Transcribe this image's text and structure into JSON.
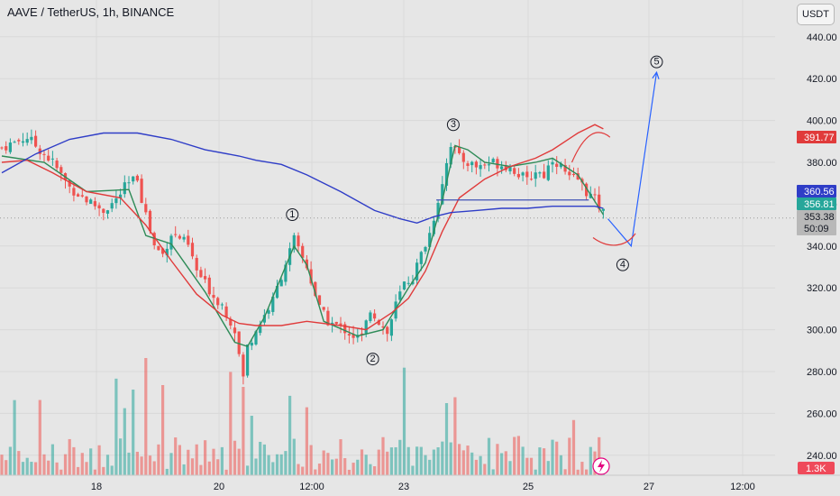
{
  "header": {
    "title": "AAVE / TetherUS, 1h, BINANCE",
    "currency": "USDT"
  },
  "colors": {
    "background": "#e6e6e6",
    "up": "#26a69a",
    "down": "#ef5350",
    "ma_blue": "#2f3dc7",
    "ma_red": "#e03b3b",
    "ma_green": "#2e8b57",
    "projection": "#2962ff",
    "grid": "#d9d9d9"
  },
  "chart_data": {
    "type": "candlestick",
    "symbol": "AAVE / TetherUS",
    "interval": "1h",
    "exchange": "BINANCE",
    "ylim": [
      230,
      447
    ],
    "y_ticks": [
      "440.00",
      "420.00",
      "400.00",
      "380.00",
      "360.00",
      "340.00",
      "320.00",
      "300.00",
      "280.00",
      "260.00",
      "240.00"
    ],
    "x_ticks": [
      "18",
      "20",
      "12:00",
      "23",
      "25",
      "27",
      "12:00"
    ],
    "price_path": [
      [
        0,
        387
      ],
      [
        6,
        392
      ],
      [
        10,
        384
      ],
      [
        12,
        380
      ],
      [
        16,
        368
      ],
      [
        20,
        362
      ],
      [
        24,
        357
      ],
      [
        27,
        362
      ],
      [
        29,
        368
      ],
      [
        32,
        373
      ],
      [
        33,
        363
      ],
      [
        36,
        340
      ],
      [
        38,
        336
      ],
      [
        40,
        346
      ],
      [
        42,
        344
      ],
      [
        44,
        340
      ],
      [
        46,
        328
      ],
      [
        48,
        322
      ],
      [
        50,
        316
      ],
      [
        52,
        312
      ],
      [
        55,
        300
      ],
      [
        56,
        288
      ],
      [
        57,
        277
      ],
      [
        58,
        292
      ],
      [
        60,
        300
      ],
      [
        64,
        314
      ],
      [
        67,
        332
      ],
      [
        69,
        343
      ],
      [
        70,
        338
      ],
      [
        72,
        330
      ],
      [
        75,
        310
      ],
      [
        77,
        304
      ],
      [
        79,
        302
      ],
      [
        81,
        300
      ],
      [
        83,
        297
      ],
      [
        85,
        296
      ],
      [
        87,
        310
      ],
      [
        89,
        304
      ],
      [
        91,
        298
      ],
      [
        93,
        312
      ],
      [
        95,
        322
      ],
      [
        97,
        325
      ],
      [
        99,
        336
      ],
      [
        101,
        346
      ],
      [
        103,
        362
      ],
      [
        105,
        380
      ],
      [
        106,
        389
      ],
      [
        108,
        382
      ],
      [
        112,
        378
      ],
      [
        116,
        380
      ],
      [
        120,
        378
      ],
      [
        124,
        371
      ],
      [
        126,
        376
      ],
      [
        128,
        374
      ],
      [
        130,
        382
      ],
      [
        132,
        378
      ],
      [
        134,
        372
      ],
      [
        136,
        372
      ],
      [
        138,
        366
      ],
      [
        140,
        362
      ],
      [
        142,
        356
      ],
      [
        143,
        353.4
      ]
    ],
    "series": [
      {
        "name": "",
        "values": [
          [
            0,
            383
          ],
          [
            10,
            380
          ],
          [
            20,
            366
          ],
          [
            30,
            367
          ],
          [
            34,
            345
          ],
          [
            40,
            341
          ],
          [
            48,
            318
          ],
          [
            55,
            294
          ],
          [
            58,
            292
          ],
          [
            62,
            306
          ],
          [
            69,
            340
          ],
          [
            72,
            331
          ],
          [
            76,
            304
          ],
          [
            84,
            297
          ],
          [
            90,
            300
          ],
          [
            96,
            320
          ],
          [
            100,
            332
          ],
          [
            104,
            362
          ],
          [
            107,
            388
          ],
          [
            110,
            386
          ],
          [
            114,
            380
          ],
          [
            120,
            378
          ],
          [
            126,
            380
          ],
          [
            130,
            382
          ],
          [
            136,
            374
          ],
          [
            142,
            355
          ]
        ]
      },
      {
        "name": "",
        "values": [
          [
            0,
            380
          ],
          [
            6,
            381
          ],
          [
            12,
            375
          ],
          [
            20,
            366
          ],
          [
            28,
            363
          ],
          [
            34,
            350
          ],
          [
            40,
            333
          ],
          [
            46,
            317
          ],
          [
            52,
            307
          ],
          [
            56,
            303
          ],
          [
            60,
            302
          ],
          [
            66,
            302
          ],
          [
            72,
            304
          ],
          [
            80,
            302
          ],
          [
            86,
            300
          ],
          [
            92,
            308
          ],
          [
            96,
            315
          ],
          [
            100,
            328
          ],
          [
            104,
            347
          ],
          [
            108,
            363
          ],
          [
            114,
            372
          ],
          [
            120,
            378
          ],
          [
            126,
            382
          ],
          [
            130,
            386
          ],
          [
            136,
            394
          ],
          [
            140,
            398
          ],
          [
            142,
            396
          ]
        ]
      },
      {
        "name": "",
        "values": [
          [
            0,
            375
          ],
          [
            8,
            384
          ],
          [
            16,
            391
          ],
          [
            24,
            394
          ],
          [
            32,
            394
          ],
          [
            40,
            391
          ],
          [
            48,
            386
          ],
          [
            56,
            383
          ],
          [
            60,
            381
          ],
          [
            66,
            379
          ],
          [
            72,
            374
          ],
          [
            80,
            366
          ],
          [
            88,
            357
          ],
          [
            94,
            353
          ],
          [
            98,
            351
          ],
          [
            102,
            354
          ],
          [
            106,
            356
          ],
          [
            112,
            357
          ],
          [
            118,
            358
          ],
          [
            124,
            358
          ],
          [
            130,
            359
          ],
          [
            136,
            359
          ],
          [
            140,
            359
          ],
          [
            142,
            358
          ]
        ]
      }
    ],
    "horizontal_line": {
      "from_x": 103,
      "to_x": 139,
      "price": 362
    },
    "projection": [
      [
        143.5,
        353
      ],
      [
        149,
        340
      ],
      [
        155,
        423
      ]
    ],
    "curves": [
      [
        [
          135,
          380
        ],
        [
          138,
          394
        ],
        [
          141,
          397
        ],
        [
          144,
          392
        ]
      ],
      [
        [
          140,
          344
        ],
        [
          144,
          338
        ],
        [
          148,
          340
        ],
        [
          150,
          346
        ]
      ]
    ],
    "wave_labels": [
      {
        "text": "1",
        "x": 69,
        "price": 355
      },
      {
        "text": "2",
        "x": 88,
        "price": 286
      },
      {
        "text": "3",
        "x": 107,
        "price": 398
      },
      {
        "text": "4",
        "x": 147,
        "price": 331
      },
      {
        "text": "5",
        "x": 155,
        "price": 428
      }
    ],
    "price_tags": [
      {
        "value": "391.77",
        "color": "#e03b3b"
      },
      {
        "value": "360.56",
        "color": "#2f3dc7"
      },
      {
        "value": "356.81",
        "color": "#26a69a"
      },
      {
        "value": "353.38",
        "color": "#b8b8b8"
      }
    ],
    "countdown": "50:09",
    "volume_label": "1.3K",
    "volume_color": "#ef4a5a"
  }
}
